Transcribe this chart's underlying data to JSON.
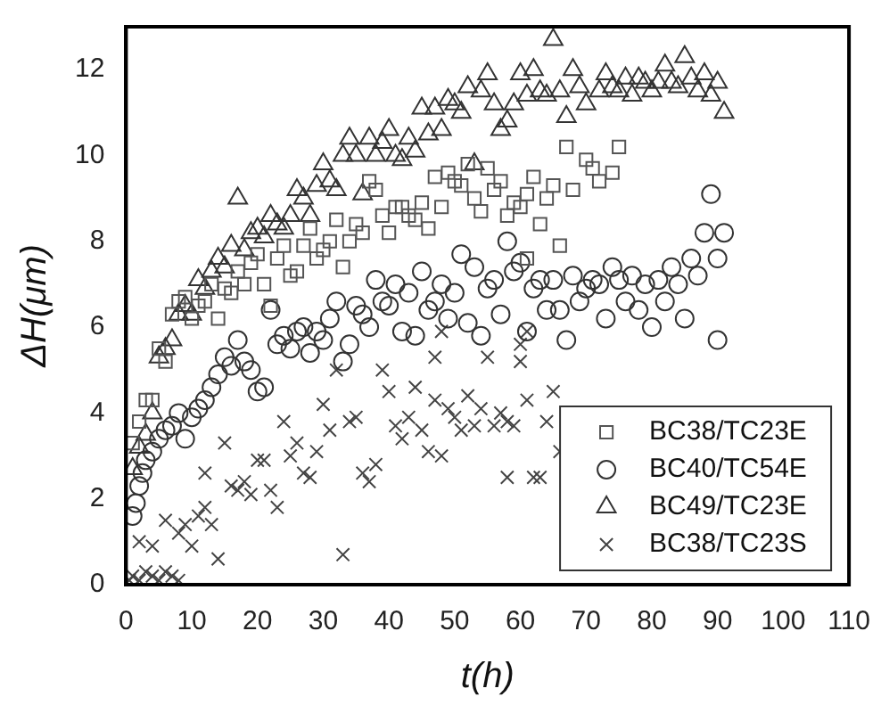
{
  "chart_data": {
    "type": "scatter",
    "xlabel": "t(h)",
    "ylabel": "ΔH(μm)",
    "xlim": [
      0,
      110
    ],
    "xticks": [
      0,
      10,
      20,
      30,
      40,
      50,
      60,
      70,
      80,
      90,
      100,
      110
    ],
    "ylim": [
      0,
      13
    ],
    "yticks": [
      0,
      2,
      4,
      6,
      8,
      10,
      12
    ],
    "grid": false,
    "legend": "bottom right",
    "series": [
      {
        "name": "BC38/TC23E",
        "color": "#555555",
        "marker": "square",
        "x": [
          1,
          2,
          3,
          4,
          5,
          6,
          7,
          8,
          9,
          10,
          11,
          12,
          13,
          14,
          15,
          16,
          17,
          18,
          19,
          20,
          21,
          22,
          23,
          24,
          25,
          26,
          27,
          28,
          29,
          30,
          31,
          32,
          33,
          34,
          35,
          36,
          37,
          38,
          39,
          40,
          41,
          42,
          43,
          44,
          45,
          46,
          47,
          48,
          49,
          50,
          51,
          52,
          53,
          54,
          55,
          56,
          57,
          58,
          59,
          60,
          61,
          62,
          63,
          64,
          65,
          66,
          67,
          68,
          70,
          71,
          72,
          74,
          75,
          61
        ],
        "values": [
          3.3,
          3.8,
          4.3,
          4.3,
          5.5,
          5.2,
          6.3,
          6.6,
          6.7,
          6.2,
          6.5,
          6.6,
          7.0,
          6.2,
          6.9,
          6.8,
          7.3,
          7.0,
          7.5,
          7.7,
          7.0,
          6.5,
          7.6,
          7.9,
          7.2,
          7.3,
          7.9,
          8.3,
          7.6,
          7.8,
          8.0,
          8.5,
          7.4,
          8.0,
          8.4,
          8.2,
          9.4,
          9.2,
          8.6,
          8.2,
          8.8,
          8.8,
          8.6,
          8.5,
          8.9,
          8.3,
          9.5,
          8.8,
          9.6,
          9.4,
          9.3,
          9.8,
          9.0,
          8.7,
          9.7,
          9.2,
          9.4,
          8.6,
          8.9,
          8.8,
          9.1,
          9.5,
          8.4,
          9.0,
          9.3,
          7.9,
          10.2,
          9.2,
          9.9,
          9.7,
          9.4,
          9.6,
          10.2,
          7.6
        ]
      },
      {
        "name": "BC40/TC54E",
        "color": "#333333",
        "marker": "circle",
        "x": [
          1,
          1.5,
          2,
          2.5,
          3,
          4,
          5,
          6,
          7,
          8,
          9,
          10,
          11,
          12,
          13,
          14,
          15,
          16,
          17,
          18,
          19,
          20,
          21,
          22,
          23,
          24,
          25,
          26,
          27,
          28,
          29,
          30,
          31,
          32,
          33,
          34,
          35,
          36,
          37,
          38,
          39,
          40,
          41,
          42,
          43,
          44,
          45,
          46,
          47,
          48,
          49,
          50,
          51,
          52,
          53,
          54,
          55,
          56,
          57,
          58,
          59,
          60,
          61,
          62,
          63,
          64,
          65,
          66,
          67,
          68,
          69,
          70,
          71,
          72,
          73,
          74,
          75,
          76,
          77,
          78,
          79,
          80,
          81,
          82,
          83,
          84,
          85,
          86,
          87,
          88,
          89,
          90,
          91,
          90
        ],
        "values": [
          1.6,
          1.9,
          2.3,
          2.6,
          2.9,
          3.1,
          3.4,
          3.6,
          3.7,
          4.0,
          3.4,
          3.9,
          4.1,
          4.3,
          4.6,
          4.9,
          5.3,
          5.1,
          5.7,
          5.2,
          5.0,
          4.5,
          4.6,
          6.4,
          5.6,
          5.8,
          5.5,
          5.9,
          6.0,
          5.4,
          5.9,
          5.7,
          6.2,
          6.6,
          5.2,
          5.6,
          6.5,
          6.3,
          6.0,
          7.1,
          6.6,
          6.5,
          7.0,
          5.9,
          6.8,
          5.8,
          7.3,
          6.4,
          6.6,
          7.0,
          6.2,
          6.8,
          7.7,
          6.1,
          7.4,
          5.8,
          6.9,
          7.1,
          6.3,
          8.0,
          7.3,
          7.5,
          5.9,
          6.9,
          7.1,
          6.4,
          7.1,
          6.4,
          5.7,
          7.2,
          6.6,
          6.9,
          7.1,
          7.0,
          6.2,
          7.4,
          7.1,
          6.6,
          7.2,
          6.4,
          7.0,
          6.0,
          7.1,
          6.6,
          7.4,
          7.0,
          6.2,
          7.6,
          7.2,
          8.2,
          9.1,
          5.7,
          8.2,
          7.6
        ]
      },
      {
        "name": "BC49/TC23E",
        "color": "#333333",
        "marker": "triangle",
        "x": [
          1,
          2,
          3,
          4,
          5,
          6,
          7,
          8,
          9,
          10,
          11,
          12,
          13,
          14,
          15,
          16,
          17,
          18,
          19,
          20,
          21,
          22,
          23,
          24,
          25,
          26,
          27,
          28,
          29,
          30,
          31,
          32,
          33,
          34,
          35,
          36,
          37,
          38,
          39,
          40,
          41,
          42,
          43,
          44,
          45,
          46,
          47,
          48,
          49,
          50,
          51,
          52,
          53,
          54,
          55,
          56,
          57,
          58,
          59,
          60,
          61,
          62,
          63,
          64,
          65,
          66,
          67,
          68,
          69,
          70,
          72,
          73,
          74,
          75,
          76,
          77,
          78,
          79,
          80,
          81,
          82,
          83,
          84,
          85,
          86,
          87,
          88,
          89,
          90,
          91
        ],
        "values": [
          2.7,
          3.2,
          3.5,
          4.0,
          5.3,
          5.5,
          5.7,
          6.3,
          6.5,
          6.3,
          7.1,
          6.9,
          7.3,
          7.6,
          7.4,
          7.9,
          9.0,
          7.8,
          8.2,
          8.3,
          8.1,
          8.6,
          8.4,
          8.3,
          8.6,
          9.2,
          9.0,
          8.6,
          9.3,
          9.8,
          9.4,
          9.2,
          10.0,
          10.4,
          10.0,
          9.1,
          10.4,
          10.0,
          10.3,
          10.6,
          10.0,
          9.9,
          10.4,
          10.1,
          11.1,
          10.5,
          11.1,
          10.6,
          11.3,
          11.2,
          11.0,
          11.6,
          9.8,
          11.5,
          11.9,
          11.2,
          10.6,
          10.8,
          11.2,
          11.9,
          11.4,
          12.0,
          11.5,
          11.4,
          12.7,
          11.5,
          10.9,
          12.0,
          11.6,
          11.2,
          11.5,
          11.9,
          11.6,
          11.5,
          11.8,
          11.4,
          11.8,
          11.7,
          11.5,
          11.7,
          12.1,
          11.7,
          11.6,
          12.3,
          11.8,
          11.5,
          11.9,
          11.4,
          11.7,
          11.0
        ]
      },
      {
        "name": "BC38/TC23S",
        "color": "#444444",
        "marker": "cross",
        "x": [
          0.5,
          1,
          2,
          3,
          4,
          5,
          6,
          7,
          8,
          2,
          4,
          6,
          8,
          9,
          10,
          11,
          12,
          13,
          14,
          12,
          15,
          16,
          17,
          18,
          19,
          20,
          21,
          22,
          23,
          24,
          25,
          26,
          27,
          28,
          29,
          30,
          31,
          32,
          33,
          34,
          35,
          36,
          37,
          38,
          39,
          40,
          41,
          42,
          43,
          44,
          45,
          46,
          47,
          48,
          49,
          50,
          51,
          52,
          53,
          54,
          55,
          56,
          57,
          58,
          59,
          60,
          61,
          62,
          63,
          64,
          65,
          66,
          58,
          60,
          61,
          48,
          47
        ],
        "values": [
          0.1,
          0.2,
          0.1,
          0.3,
          0.2,
          0.1,
          0.3,
          0.2,
          0.1,
          1.0,
          0.9,
          1.5,
          1.2,
          1.4,
          0.9,
          1.6,
          1.8,
          1.4,
          0.6,
          2.6,
          3.3,
          2.3,
          2.2,
          2.4,
          2.1,
          2.9,
          2.9,
          2.2,
          1.8,
          3.8,
          3.0,
          3.3,
          2.6,
          2.5,
          3.1,
          4.2,
          3.6,
          5.0,
          0.7,
          3.8,
          3.9,
          2.6,
          2.4,
          2.8,
          5.0,
          4.5,
          3.7,
          3.4,
          3.9,
          4.6,
          3.6,
          3.1,
          4.3,
          3.0,
          4.1,
          3.9,
          3.6,
          4.4,
          3.7,
          4.1,
          5.3,
          3.7,
          4.0,
          3.8,
          3.7,
          5.6,
          4.3,
          2.5,
          2.5,
          3.8,
          4.5,
          3.1,
          2.5,
          5.2,
          5.9,
          5.9,
          5.3
        ]
      }
    ]
  }
}
